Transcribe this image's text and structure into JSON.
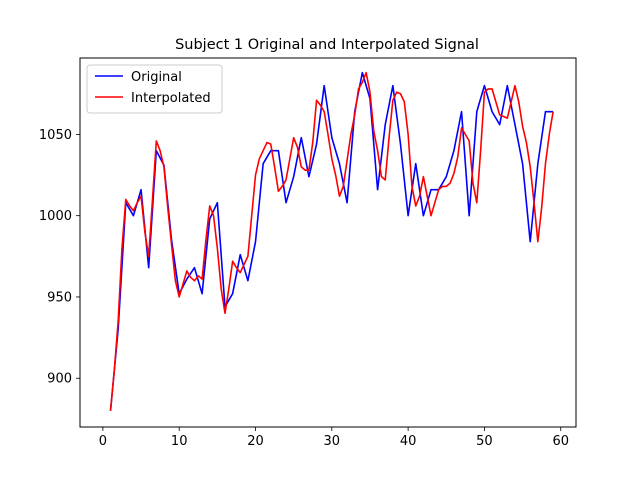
{
  "chart_data": {
    "type": "line",
    "title": "Subject 1 Original and Interpolated Signal",
    "xlabel": "",
    "ylabel": "",
    "xlim": [
      -3,
      62
    ],
    "ylim": [
      870,
      1097
    ],
    "xticks": [
      0,
      10,
      20,
      30,
      40,
      50,
      60
    ],
    "yticks": [
      900,
      950,
      1000,
      1050
    ],
    "grid": false,
    "legend_position": "upper left",
    "series": [
      {
        "name": "Original",
        "color": "#0000ff",
        "x": [
          1,
          2,
          3,
          4,
          5,
          6,
          7,
          8,
          9,
          10,
          11,
          12,
          13,
          14,
          15,
          16,
          17,
          18,
          19,
          20,
          21,
          22,
          23,
          24,
          25,
          26,
          27,
          28,
          29,
          30,
          31,
          32,
          33,
          34,
          35,
          36,
          37,
          38,
          39,
          40,
          41,
          42,
          43,
          44,
          45,
          46,
          47,
          48,
          49,
          50,
          51,
          52,
          53,
          54,
          55,
          56,
          57,
          58,
          59
        ],
        "values": [
          880,
          930,
          1008,
          1000,
          1016,
          968,
          1040,
          1031,
          985,
          952,
          961,
          968,
          952,
          998,
          1008,
          944,
          952,
          976,
          960,
          984,
          1032,
          1040,
          1040,
          1008,
          1024,
          1048,
          1024,
          1044,
          1080,
          1048,
          1032,
          1008,
          1064,
          1088,
          1072,
          1016,
          1056,
          1080,
          1044,
          1000,
          1032,
          1000,
          1016,
          1016,
          1024,
          1040,
          1064,
          1000,
          1064,
          1080,
          1064,
          1056,
          1080,
          1056,
          1032,
          984,
          1032,
          1064,
          1064
        ]
      },
      {
        "name": "Interpolated",
        "color": "#ff0000",
        "x": [
          1,
          1.5,
          2,
          2.5,
          3,
          3.5,
          4,
          4.5,
          5,
          5.5,
          6,
          6.5,
          7,
          7.5,
          8,
          8.5,
          9,
          9.5,
          10,
          10.5,
          11,
          11.5,
          12,
          12.5,
          13,
          13.5,
          14,
          14.5,
          15,
          15.5,
          16,
          16.5,
          17,
          17.5,
          18,
          18.5,
          19,
          19.5,
          20,
          20.5,
          21,
          21.5,
          22,
          22.5,
          23,
          23.5,
          24,
          24.5,
          25,
          25.5,
          26,
          26.5,
          27,
          27.5,
          28,
          28.5,
          29,
          29.5,
          30,
          30.5,
          31,
          31.5,
          32,
          32.5,
          33,
          33.5,
          34,
          34.5,
          35,
          35.5,
          36,
          36.5,
          37,
          37.5,
          38,
          38.5,
          39,
          39.5,
          40,
          40.5,
          41,
          41.5,
          42,
          42.5,
          43,
          43.5,
          44,
          44.5,
          45,
          45.5,
          46,
          46.5,
          47,
          47.5,
          48,
          48.5,
          49,
          49.5,
          50,
          50.5,
          51,
          51.5,
          52,
          52.5,
          53,
          53.5,
          54,
          54.5,
          55,
          55.5,
          56,
          56.5,
          57,
          57.5,
          58,
          58.5,
          59
        ],
        "values": [
          880,
          905,
          935,
          980,
          1010,
          1006,
          1003,
          1008,
          1012,
          990,
          975,
          1010,
          1046,
          1040,
          1030,
          1005,
          982,
          960,
          950,
          958,
          966,
          962,
          960,
          963,
          961,
          985,
          1006,
          1000,
          980,
          955,
          940,
          955,
          972,
          968,
          965,
          970,
          975,
          1000,
          1025,
          1035,
          1040,
          1045,
          1044,
          1030,
          1015,
          1018,
          1022,
          1035,
          1048,
          1042,
          1030,
          1028,
          1028,
          1045,
          1071,
          1068,
          1064,
          1050,
          1035,
          1025,
          1012,
          1018,
          1034,
          1050,
          1062,
          1078,
          1082,
          1088,
          1076,
          1052,
          1040,
          1024,
          1022,
          1048,
          1071,
          1076,
          1075,
          1070,
          1050,
          1018,
          1006,
          1012,
          1024,
          1012,
          1000,
          1008,
          1016,
          1018,
          1018,
          1020,
          1026,
          1036,
          1054,
          1050,
          1046,
          1020,
          1008,
          1040,
          1076,
          1078,
          1078,
          1070,
          1062,
          1061,
          1060,
          1070,
          1080,
          1070,
          1055,
          1045,
          1030,
          1008,
          984,
          1005,
          1032,
          1050,
          1064
        ]
      }
    ]
  }
}
